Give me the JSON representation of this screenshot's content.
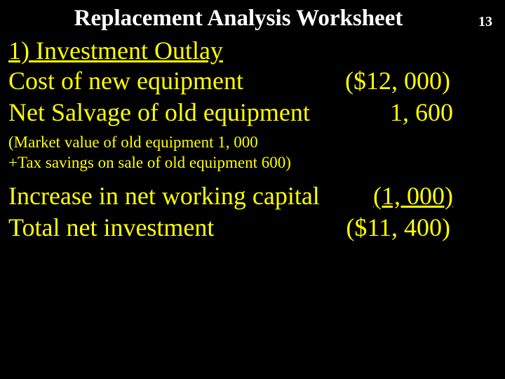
{
  "colors": {
    "background": "#000000",
    "title_text": "#ffffff",
    "body_text": "#ffff00"
  },
  "typography": {
    "family": "Times New Roman",
    "title_size_pt": 33,
    "body_size_pt": 36,
    "note_size_pt": 23,
    "pagenum_size_pt": 20
  },
  "page_number": "13",
  "title": "Replacement Analysis Worksheet",
  "section_heading": "1) Investment Outlay",
  "lines": {
    "cost_new_equipment": {
      "label": "Cost of new equipment",
      "value": "($12, 000)"
    },
    "net_salvage_old": {
      "label": "Net Salvage of old equipment",
      "value": "1, 600"
    }
  },
  "note": {
    "line1": "(Market value of old equipment   1, 000",
    "line2": " +Tax savings on sale of old equipment  600)"
  },
  "lines2": {
    "increase_nwc": {
      "label": "Increase in net working capital",
      "value": "(1, 000)"
    },
    "total_net_invest": {
      "label": "Total net investment",
      "value": "($11, 400)"
    }
  }
}
